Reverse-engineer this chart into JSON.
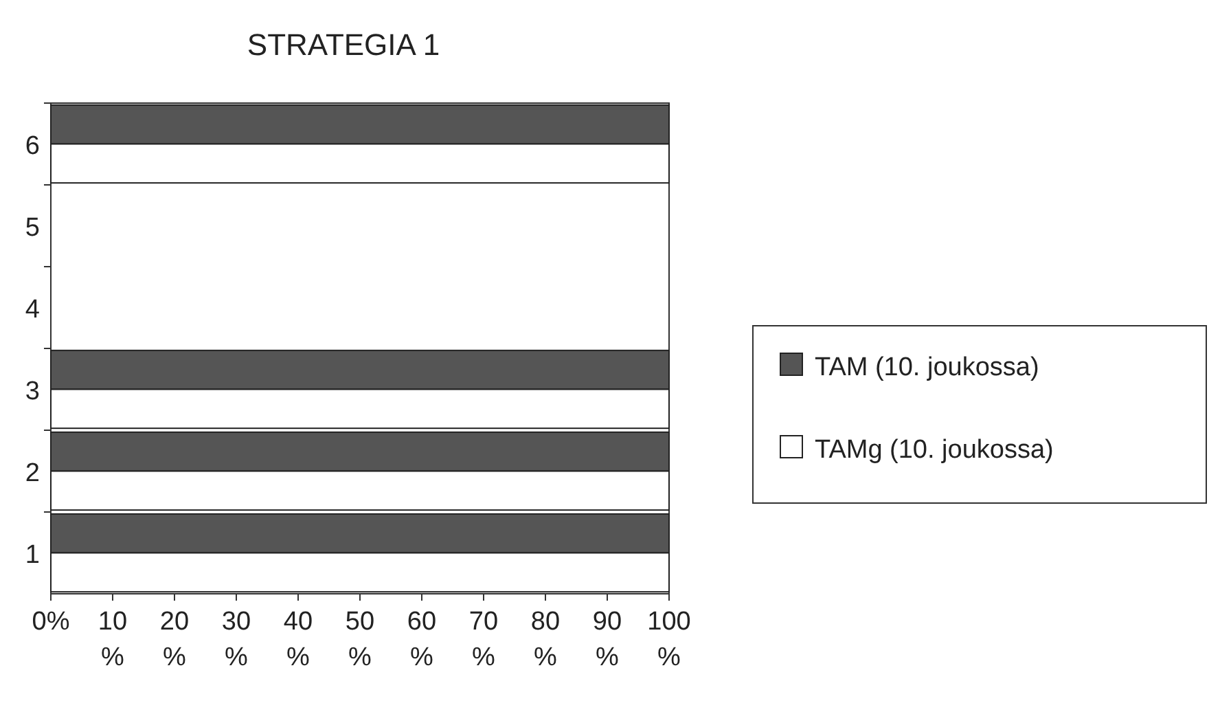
{
  "chart_data": {
    "type": "bar",
    "orientation": "horizontal",
    "title": "STRATEGIA 1",
    "categories": [
      "6",
      "5",
      "4",
      "3",
      "2",
      "1"
    ],
    "series": [
      {
        "name": "TAM (10. joukossa)",
        "color": "#555555",
        "values": [
          100,
          0,
          0,
          100,
          100,
          100
        ]
      },
      {
        "name": "TAMg (10. joukossa)",
        "color": "#ffffff",
        "values": [
          100,
          0,
          0,
          100,
          100,
          100
        ]
      }
    ],
    "xlim": [
      0,
      100
    ],
    "xticks": [
      {
        "value": 0,
        "label": "0%"
      },
      {
        "value": 10,
        "label": "10 %"
      },
      {
        "value": 20,
        "label": "20 %"
      },
      {
        "value": 30,
        "label": "30 %"
      },
      {
        "value": 40,
        "label": "40 %"
      },
      {
        "value": 50,
        "label": "50 %"
      },
      {
        "value": 60,
        "label": "60 %"
      },
      {
        "value": 70,
        "label": "70 %"
      },
      {
        "value": 80,
        "label": "80 %"
      },
      {
        "value": 90,
        "label": "90 %"
      },
      {
        "value": 100,
        "label": "100 %"
      }
    ],
    "grid": false,
    "legend": "right"
  }
}
